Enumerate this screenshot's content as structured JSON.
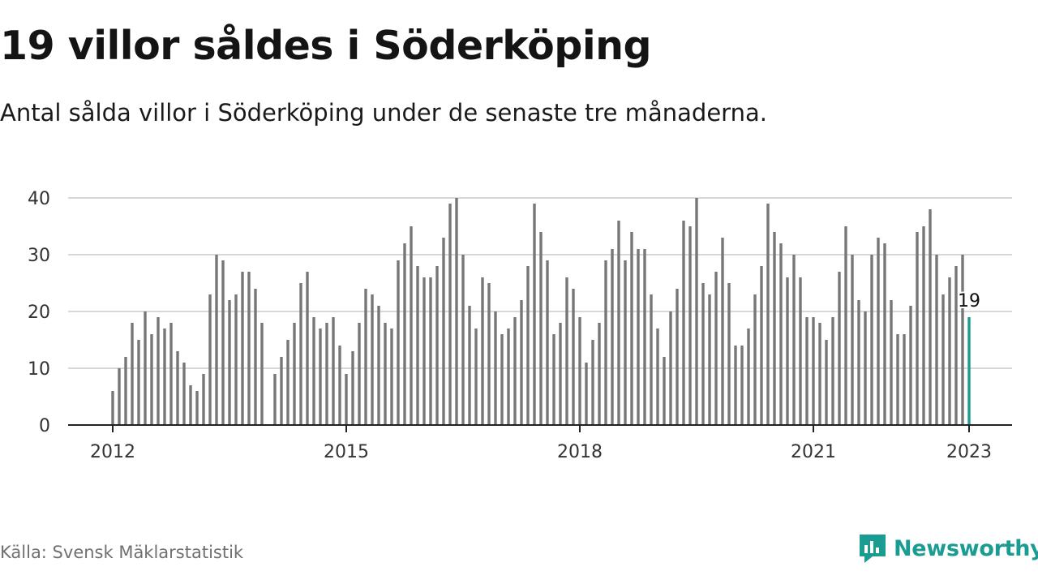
{
  "header": {
    "title": "19 villor såldes i Söderköping",
    "subtitle": "Antal sålda villor i Söderköping under de senaste tre månaderna."
  },
  "footer": {
    "source": "Källa: Svensk Mäklarstatistik",
    "brand": "Newsworthy",
    "brand_icon": "newsworthy-logo-icon"
  },
  "colors": {
    "bar": "#76767b",
    "highlight": "#1a9c92",
    "grid": "#d8d8d8",
    "axis": "#222222",
    "text": "#333333"
  },
  "chart_data": {
    "type": "bar",
    "title": "",
    "xlabel": "",
    "ylabel": "",
    "ylim": [
      0,
      40
    ],
    "yticks": [
      0,
      10,
      20,
      30,
      40
    ],
    "xticks": [
      "2012",
      "2015",
      "2018",
      "2021",
      "2023"
    ],
    "grid": true,
    "start_month": "2012-01",
    "end_month": "2023-01",
    "values": [
      6,
      10,
      12,
      18,
      15,
      20,
      16,
      19,
      17,
      18,
      13,
      11,
      7,
      6,
      9,
      23,
      30,
      29,
      22,
      23,
      27,
      27,
      24,
      18,
      null,
      9,
      12,
      15,
      18,
      25,
      27,
      19,
      17,
      18,
      19,
      14,
      9,
      13,
      18,
      24,
      23,
      21,
      18,
      17,
      29,
      32,
      35,
      28,
      26,
      26,
      28,
      33,
      39,
      40,
      30,
      21,
      17,
      26,
      25,
      20,
      16,
      17,
      19,
      22,
      28,
      39,
      34,
      29,
      16,
      18,
      26,
      24,
      19,
      11,
      15,
      18,
      29,
      31,
      36,
      29,
      34,
      31,
      31,
      23,
      17,
      12,
      20,
      24,
      36,
      35,
      40,
      25,
      23,
      27,
      33,
      25,
      14,
      14,
      17,
      23,
      28,
      39,
      34,
      32,
      26,
      30,
      26,
      19,
      19,
      18,
      15,
      19,
      27,
      35,
      30,
      22,
      20,
      30,
      33,
      32,
      22,
      16,
      16,
      21,
      34,
      35,
      38,
      30,
      23,
      26,
      28,
      30,
      19
    ],
    "highlight": {
      "label": "19",
      "value": 19,
      "month": "2023-01"
    }
  }
}
